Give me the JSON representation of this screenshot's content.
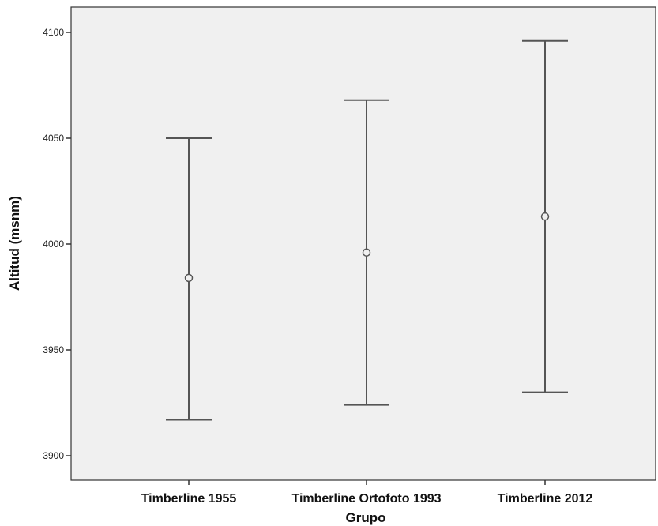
{
  "chart_data": {
    "type": "errorbar",
    "xlabel": "Grupo",
    "ylabel": "Altitud (msnm)",
    "ylim": [
      3889,
      4111
    ],
    "yticks": [
      3900,
      3950,
      4000,
      4050,
      4100
    ],
    "categories": [
      "Timberline 1955",
      "Timberline Ortofoto 1993",
      "Timberline 2012"
    ],
    "series": [
      {
        "mean": [
          3984,
          3996,
          4013
        ],
        "lower": [
          3917,
          3924,
          3930
        ],
        "upper": [
          4050,
          4068,
          4096
        ]
      }
    ],
    "grid": false,
    "colors": {
      "plot_bg": "#f0f0f0",
      "line": "#555555",
      "axis": "#333333"
    }
  }
}
